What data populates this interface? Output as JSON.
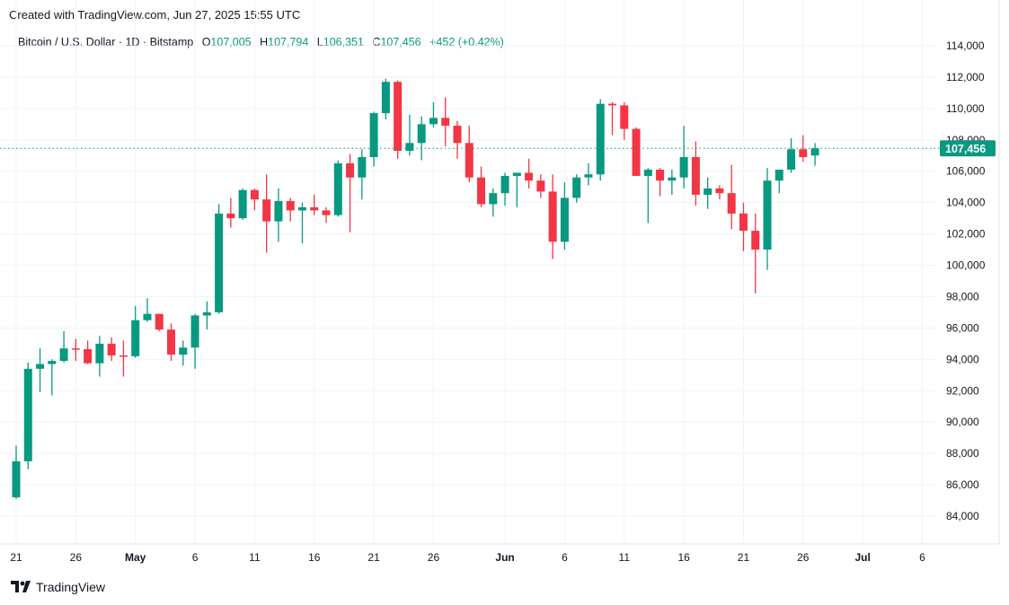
{
  "header": {
    "created": "Created with TradingView.com, Jun 27, 2025 15:55 UTC"
  },
  "legend": {
    "symbol": "Bitcoin / U.S. Dollar · 1D · Bitstamp",
    "o_label": "O",
    "o": "107,005",
    "h_label": "H",
    "h": "107,794",
    "l_label": "L",
    "l": "106,351",
    "c_label": "C",
    "c": "107,456",
    "change": "+452 (+0.42%)"
  },
  "footer": {
    "brand": "TradingView"
  },
  "colors": {
    "up": "#089981",
    "down": "#f23645",
    "grid": "#f0f3fa"
  },
  "chart_data": {
    "type": "candlestick",
    "ylim": [
      83000,
      115000
    ],
    "y_ticks": [
      "84,000",
      "86,000",
      "88,000",
      "90,000",
      "92,000",
      "94,000",
      "96,000",
      "98,000",
      "100,000",
      "102,000",
      "104,000",
      "106,000",
      "108,000",
      "110,000",
      "112,000",
      "114,000"
    ],
    "x_ticks": [
      {
        "label": "21",
        "date": "2025-04-21"
      },
      {
        "label": "26",
        "date": "2025-04-26"
      },
      {
        "label": "May",
        "date": "2025-05-01"
      },
      {
        "label": "6",
        "date": "2025-05-06"
      },
      {
        "label": "11",
        "date": "2025-05-11"
      },
      {
        "label": "16",
        "date": "2025-05-16"
      },
      {
        "label": "21",
        "date": "2025-05-21"
      },
      {
        "label": "26",
        "date": "2025-05-26"
      },
      {
        "label": "Jun",
        "date": "2025-06-01"
      },
      {
        "label": "6",
        "date": "2025-06-06"
      },
      {
        "label": "11",
        "date": "2025-06-11"
      },
      {
        "label": "16",
        "date": "2025-06-16"
      },
      {
        "label": "21",
        "date": "2025-06-21"
      },
      {
        "label": "26",
        "date": "2025-06-26"
      },
      {
        "label": "Jul",
        "date": "2025-07-01"
      },
      {
        "label": "6",
        "date": "2025-07-06"
      }
    ],
    "last_price": 107456,
    "last_price_label": "107,456",
    "start_date": "2025-04-21",
    "ohlc": [
      [
        85200,
        88500,
        85100,
        87500
      ],
      [
        87500,
        93800,
        87000,
        93400
      ],
      [
        93400,
        94700,
        91900,
        93700
      ],
      [
        93700,
        94000,
        91700,
        93900
      ],
      [
        93900,
        95800,
        93800,
        94700
      ],
      [
        94700,
        95300,
        93900,
        94650
      ],
      [
        94650,
        95200,
        93700,
        93750
      ],
      [
        93750,
        95500,
        92900,
        95000
      ],
      [
        95000,
        95400,
        93900,
        94250
      ],
      [
        94250,
        95200,
        92900,
        94200
      ],
      [
        94200,
        97400,
        94100,
        96500
      ],
      [
        96500,
        97900,
        96400,
        96900
      ],
      [
        96900,
        96900,
        95800,
        95900
      ],
      [
        95900,
        96300,
        93900,
        94300
      ],
      [
        94300,
        95200,
        93600,
        94750
      ],
      [
        94750,
        96900,
        93400,
        96800
      ],
      [
        96800,
        97700,
        95900,
        97000
      ],
      [
        97000,
        103900,
        96900,
        103300
      ],
      [
        103300,
        104300,
        102400,
        103000
      ],
      [
        103000,
        104900,
        102900,
        104800
      ],
      [
        104800,
        104900,
        103500,
        104200
      ],
      [
        104200,
        105800,
        100800,
        102800
      ],
      [
        102800,
        104900,
        101500,
        104100
      ],
      [
        104100,
        104300,
        102800,
        103500
      ],
      [
        103500,
        104000,
        101400,
        103700
      ],
      [
        103700,
        104500,
        103200,
        103500
      ],
      [
        103500,
        103700,
        102700,
        103200
      ],
      [
        103200,
        106700,
        103100,
        106500
      ],
      [
        106500,
        107100,
        102100,
        105600
      ],
      [
        105600,
        107400,
        104200,
        106900
      ],
      [
        106900,
        109800,
        106300,
        109700
      ],
      [
        109700,
        111900,
        109300,
        111700
      ],
      [
        111700,
        111800,
        106800,
        107300
      ],
      [
        107300,
        109600,
        107000,
        107800
      ],
      [
        107800,
        109500,
        106700,
        109000
      ],
      [
        109000,
        110400,
        108800,
        109400
      ],
      [
        109400,
        110700,
        107600,
        108900
      ],
      [
        108900,
        109200,
        106800,
        107800
      ],
      [
        107800,
        108900,
        105300,
        105600
      ],
      [
        105600,
        106300,
        103700,
        103900
      ],
      [
        103900,
        104900,
        103100,
        104600
      ],
      [
        104600,
        105900,
        103800,
        105700
      ],
      [
        105700,
        105900,
        103700,
        105900
      ],
      [
        105900,
        106800,
        104900,
        105400
      ],
      [
        105400,
        105800,
        104300,
        104700
      ],
      [
        104700,
        105800,
        100400,
        101500
      ],
      [
        101500,
        105300,
        101000,
        104300
      ],
      [
        104300,
        105800,
        104000,
        105600
      ],
      [
        105600,
        106500,
        105100,
        105800
      ],
      [
        105800,
        110600,
        105400,
        110300
      ],
      [
        110300,
        110400,
        108300,
        110200
      ],
      [
        110200,
        110400,
        108000,
        108700
      ],
      [
        108700,
        108800,
        105700,
        105700
      ],
      [
        105700,
        106200,
        102700,
        106100
      ],
      [
        106100,
        106200,
        104400,
        105400
      ],
      [
        105400,
        106100,
        104500,
        105600
      ],
      [
        105600,
        108900,
        104900,
        106900
      ],
      [
        106900,
        107900,
        103800,
        104500
      ],
      [
        104500,
        105600,
        103600,
        104900
      ],
      [
        104900,
        105100,
        104200,
        104600
      ],
      [
        104600,
        106400,
        102300,
        103300
      ],
      [
        103300,
        104000,
        100900,
        102200
      ],
      [
        102200,
        103300,
        98200,
        101000
      ],
      [
        101000,
        106200,
        99700,
        105400
      ],
      [
        105400,
        106100,
        104600,
        106100
      ],
      [
        106100,
        108100,
        105900,
        107400
      ],
      [
        107400,
        108300,
        106600,
        106900
      ],
      [
        107005,
        107794,
        106351,
        107456
      ]
    ]
  }
}
